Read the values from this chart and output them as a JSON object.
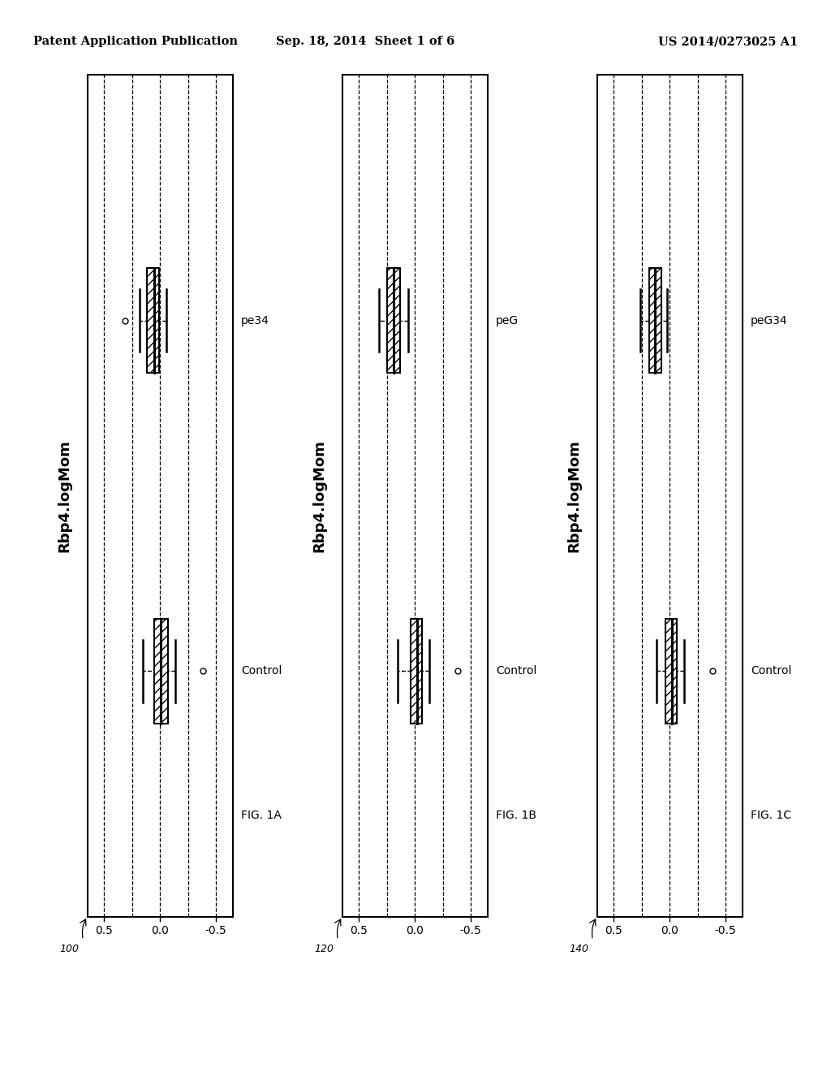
{
  "header_left": "Patent Application Publication",
  "header_center": "Sep. 18, 2014  Sheet 1 of 6",
  "header_right": "US 2014/0273025 A1",
  "panels": [
    {
      "fig_label": "FIG. 1C",
      "ref_num": "140",
      "ylabel": "Rbp4.logMom",
      "cat_bottom": "Control",
      "cat_top": "peG34",
      "xticks": [
        0.5,
        0.0,
        -0.5
      ],
      "xticklabels": [
        "0.5",
        "0.0",
        "-0.5"
      ],
      "dashed_lines": [
        0.5,
        0.25,
        0.0,
        -0.25,
        -0.5
      ],
      "ctrl_median": -0.02,
      "ctrl_q1": -0.065,
      "ctrl_q3": 0.04,
      "ctrl_wl": -0.13,
      "ctrl_wh": 0.12,
      "ctrl_outliers": [
        -0.38
      ],
      "cond_median": 0.13,
      "cond_q1": 0.075,
      "cond_q3": 0.185,
      "cond_wl": 0.02,
      "cond_wh": 0.26,
      "cond_outliers": []
    },
    {
      "fig_label": "FIG. 1B",
      "ref_num": "120",
      "ylabel": "Rbp4.logMom",
      "cat_bottom": "Control",
      "cat_top": "peG",
      "xticks": [
        0.5,
        0.0,
        -0.5
      ],
      "xticklabels": [
        "0.5",
        "0.0",
        "-0.5"
      ],
      "dashed_lines": [
        0.5,
        0.25,
        0.0,
        -0.25,
        -0.5
      ],
      "ctrl_median": -0.02,
      "ctrl_q1": -0.065,
      "ctrl_q3": 0.04,
      "ctrl_wl": -0.13,
      "ctrl_wh": 0.15,
      "ctrl_outliers": [
        -0.38
      ],
      "cond_median": 0.19,
      "cond_q1": 0.13,
      "cond_q3": 0.245,
      "cond_wl": 0.06,
      "cond_wh": 0.32,
      "cond_outliers": []
    },
    {
      "fig_label": "FIG. 1A",
      "ref_num": "100",
      "ylabel": "Rbp4.logMom",
      "cat_bottom": "Control",
      "cat_top": "pe34",
      "xticks": [
        0.5,
        0.0,
        -0.5
      ],
      "xticklabels": [
        "0.5",
        "0.0",
        "-0.5"
      ],
      "dashed_lines": [
        0.5,
        0.25,
        0.0,
        -0.25,
        -0.5
      ],
      "ctrl_median": -0.01,
      "ctrl_q1": -0.07,
      "ctrl_q3": 0.055,
      "ctrl_wl": -0.14,
      "ctrl_wh": 0.155,
      "ctrl_outliers": [
        -0.38
      ],
      "cond_median": 0.055,
      "cond_q1": 0.005,
      "cond_q3": 0.115,
      "cond_wl": -0.055,
      "cond_wh": 0.185,
      "cond_outliers": [
        0.31
      ]
    }
  ]
}
